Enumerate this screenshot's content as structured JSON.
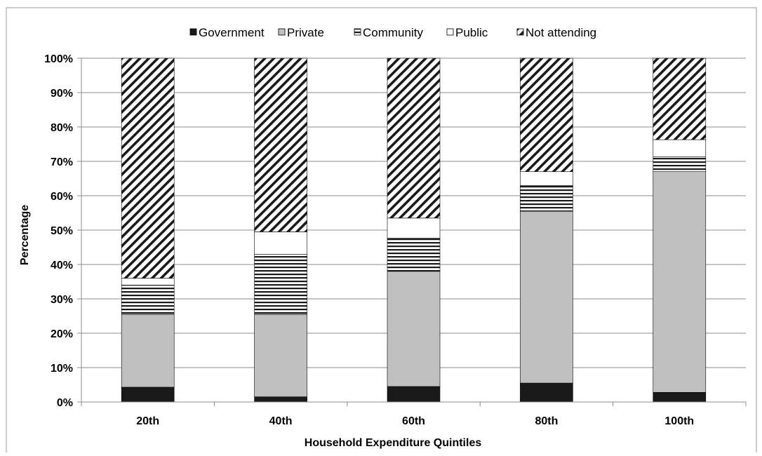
{
  "chart_data": {
    "type": "bar",
    "stacked": true,
    "title": "",
    "xlabel": "Household Expenditure Quintiles",
    "ylabel": "Percentage",
    "ylim": [
      0,
      100
    ],
    "y_ticks": [
      "0%",
      "10%",
      "20%",
      "30%",
      "40%",
      "50%",
      "60%",
      "70%",
      "80%",
      "90%",
      "100%"
    ],
    "categories": [
      "20th",
      "40th",
      "60th",
      "80th",
      "100th"
    ],
    "legend_position": "top",
    "grid": true,
    "series": [
      {
        "name": "Government",
        "values": [
          4.3,
          1.5,
          4.5,
          5.5,
          2.8
        ],
        "color": "#1a1a1a",
        "pattern": "solid"
      },
      {
        "name": "Private",
        "values": [
          21.2,
          24.0,
          33.5,
          50.0,
          64.2
        ],
        "color": "#c0c0c0",
        "pattern": "solid"
      },
      {
        "name": "Community",
        "values": [
          8.5,
          17.5,
          9.7,
          7.5,
          4.3
        ],
        "color": "#1a1a1a",
        "pattern": "horizontal-stripes"
      },
      {
        "name": "Public",
        "values": [
          2.0,
          6.5,
          5.8,
          4.0,
          5.0
        ],
        "color": "#ffffff",
        "pattern": "solid"
      },
      {
        "name": "Not attending",
        "values": [
          64.0,
          50.5,
          46.5,
          33.0,
          23.7
        ],
        "color": "#1a1a1a",
        "pattern": "diagonal-stripes"
      }
    ]
  }
}
